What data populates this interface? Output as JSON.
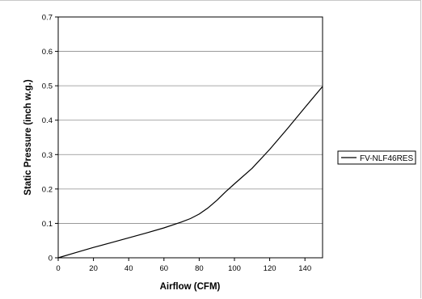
{
  "chart_data": {
    "type": "line",
    "title": "",
    "xlabel": "Airflow (CFM)",
    "ylabel": "Static Pressure (inch w.g.)",
    "xlim": [
      0,
      150
    ],
    "ylim": [
      0,
      0.7
    ],
    "x_ticks": [
      "0",
      "20",
      "40",
      "60",
      "80",
      "100",
      "120",
      "140"
    ],
    "y_ticks": [
      "0",
      "0.1",
      "0.2",
      "0.3",
      "0.4",
      "0.5",
      "0.6",
      "0.7"
    ],
    "grid": "horizontal",
    "legend_position": "right",
    "series": [
      {
        "name": "FV-NLF46RES",
        "color": "#000000",
        "x": [
          0,
          10,
          20,
          30,
          40,
          50,
          60,
          70,
          75,
          80,
          85,
          90,
          95,
          100,
          110,
          120,
          130,
          140,
          150
        ],
        "y": [
          0,
          0.015,
          0.03,
          0.044,
          0.058,
          0.072,
          0.087,
          0.104,
          0.114,
          0.127,
          0.145,
          0.167,
          0.192,
          0.215,
          0.26,
          0.315,
          0.375,
          0.437,
          0.498
        ]
      }
    ]
  }
}
